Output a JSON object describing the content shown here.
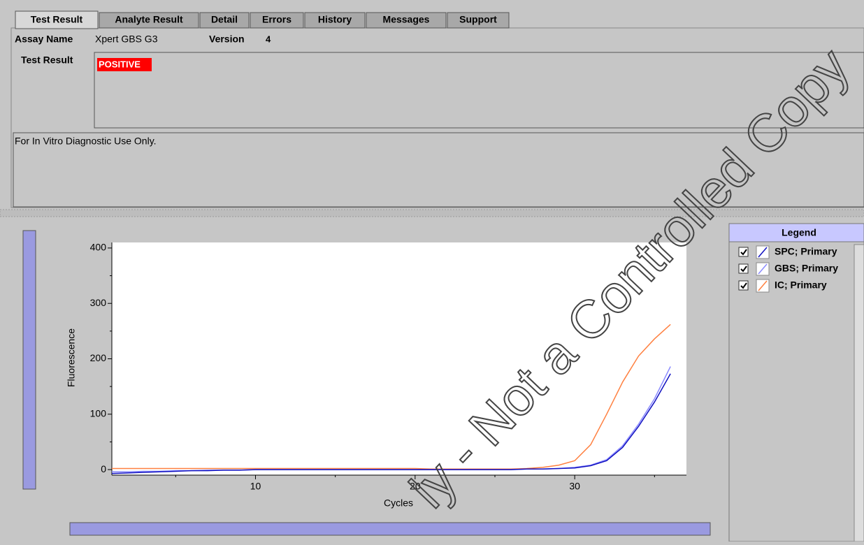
{
  "tabs": [
    "Test Result",
    "Analyte Result",
    "Detail",
    "Errors",
    "History",
    "Messages",
    "Support"
  ],
  "assay_label": "Assay Name",
  "assay_name": "Xpert GBS G3",
  "version_label": "Version",
  "version": 4,
  "test_result_label": "Test Result",
  "test_result": "POSITIVE",
  "note": "For In Vitro Diagnostic Use Only.",
  "watermark": "ly - Not a Controlled Copy",
  "legend_title": "Legend",
  "chart_data": {
    "type": "line",
    "x_label": "Cycles",
    "y_label": "Fluorescence",
    "x": [
      1,
      2,
      3,
      4,
      5,
      6,
      7,
      8,
      9,
      10,
      11,
      12,
      13,
      14,
      15,
      16,
      17,
      18,
      19,
      20,
      21,
      22,
      23,
      24,
      25,
      26,
      27,
      28,
      29,
      30,
      31,
      32,
      33,
      34,
      35,
      36
    ],
    "xlim": [
      1,
      37
    ],
    "xticks": [
      10,
      20,
      30
    ],
    "xminor_ticks": [
      5,
      15,
      25,
      35
    ],
    "ylim": [
      -10,
      410
    ],
    "yticks": [
      0,
      100,
      200,
      300,
      400
    ],
    "yminor_ticks": [
      50,
      150,
      250,
      350
    ],
    "series": [
      {
        "name": "SPC; Primary",
        "color": "#1010c0",
        "values": [
          -7,
          -6,
          -5,
          -4,
          -3,
          -2,
          -2,
          -1,
          -1,
          0,
          0,
          0,
          0,
          0,
          0,
          0,
          0,
          0,
          0,
          0,
          0,
          0,
          0,
          0,
          0,
          0,
          1,
          1,
          2,
          3,
          7,
          16,
          40,
          78,
          122,
          173
        ]
      },
      {
        "name": "GBS; Primary",
        "color": "#8a8aff",
        "values": [
          -4,
          -4,
          -3,
          -3,
          -2,
          -2,
          -1,
          -1,
          -1,
          0,
          0,
          0,
          0,
          0,
          0,
          0,
          0,
          0,
          0,
          0,
          0,
          0,
          0,
          0,
          0,
          0,
          1,
          1,
          2,
          4,
          8,
          18,
          43,
          82,
          128,
          186
        ]
      },
      {
        "name": "IC; Primary",
        "color": "#ff8040",
        "values": [
          2,
          2,
          2,
          2,
          2,
          2,
          2,
          2,
          2,
          2,
          2,
          2,
          2,
          2,
          2,
          2,
          2,
          2,
          2,
          2,
          1,
          1,
          1,
          1,
          1,
          1,
          2,
          4,
          8,
          16,
          45,
          100,
          158,
          205,
          236,
          262
        ]
      }
    ]
  }
}
